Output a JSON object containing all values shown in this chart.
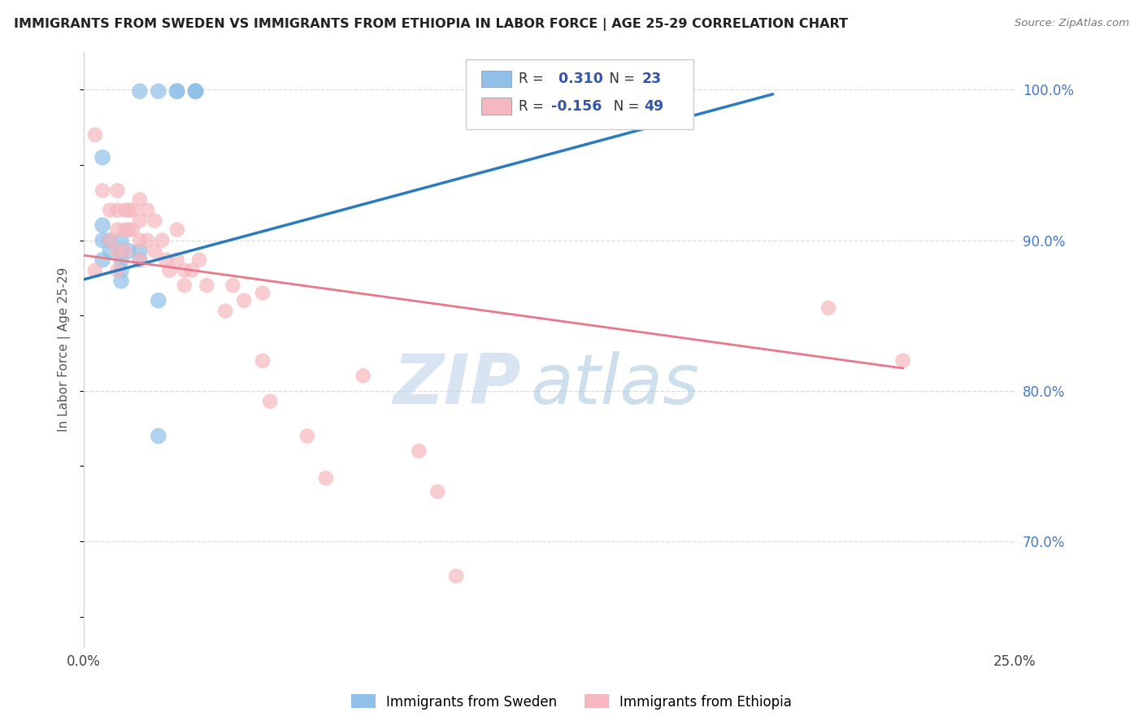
{
  "title": "IMMIGRANTS FROM SWEDEN VS IMMIGRANTS FROM ETHIOPIA IN LABOR FORCE | AGE 25-29 CORRELATION CHART",
  "source": "Source: ZipAtlas.com",
  "ylabel": "In Labor Force | Age 25-29",
  "xlim": [
    0.0,
    0.25
  ],
  "ylim": [
    0.63,
    1.025
  ],
  "xticks": [
    0.0,
    0.05,
    0.1,
    0.15,
    0.2,
    0.25
  ],
  "xtick_labels": [
    "0.0%",
    "",
    "",
    "",
    "",
    "25.0%"
  ],
  "yticks_right": [
    1.0,
    0.9,
    0.8,
    0.7
  ],
  "ytick_labels_right": [
    "100.0%",
    "90.0%",
    "80.0%",
    "70.0%"
  ],
  "sweden_color": "#90c0e8",
  "ethiopia_color": "#f5b8c0",
  "sweden_line_color": "#2b7bbf",
  "ethiopia_line_color": "#e8788a",
  "sweden_R": 0.31,
  "sweden_N": 23,
  "ethiopia_R": -0.156,
  "ethiopia_N": 49,
  "sweden_scatter_x": [
    0.015,
    0.02,
    0.025,
    0.025,
    0.03,
    0.03,
    0.03,
    0.005,
    0.005,
    0.005,
    0.005,
    0.007,
    0.007,
    0.01,
    0.01,
    0.01,
    0.01,
    0.01,
    0.012,
    0.015,
    0.015,
    0.02,
    0.02
  ],
  "sweden_scatter_y": [
    0.999,
    0.999,
    0.999,
    0.999,
    0.999,
    0.999,
    0.999,
    0.955,
    0.91,
    0.9,
    0.887,
    0.9,
    0.893,
    0.9,
    0.893,
    0.887,
    0.88,
    0.873,
    0.893,
    0.893,
    0.887,
    0.86,
    0.77
  ],
  "ethiopia_scatter_x": [
    0.003,
    0.003,
    0.005,
    0.007,
    0.007,
    0.009,
    0.009,
    0.009,
    0.009,
    0.009,
    0.011,
    0.011,
    0.011,
    0.012,
    0.012,
    0.013,
    0.013,
    0.015,
    0.015,
    0.015,
    0.015,
    0.017,
    0.017,
    0.019,
    0.019,
    0.021,
    0.022,
    0.023,
    0.025,
    0.025,
    0.027,
    0.027,
    0.029,
    0.031,
    0.033,
    0.038,
    0.04,
    0.043,
    0.048,
    0.048,
    0.05,
    0.06,
    0.065,
    0.075,
    0.09,
    0.095,
    0.1,
    0.2,
    0.22
  ],
  "ethiopia_scatter_y": [
    0.97,
    0.88,
    0.933,
    0.92,
    0.9,
    0.933,
    0.92,
    0.907,
    0.893,
    0.88,
    0.92,
    0.907,
    0.893,
    0.92,
    0.907,
    0.92,
    0.907,
    0.927,
    0.913,
    0.9,
    0.887,
    0.92,
    0.9,
    0.913,
    0.893,
    0.9,
    0.887,
    0.88,
    0.907,
    0.887,
    0.88,
    0.87,
    0.88,
    0.887,
    0.87,
    0.853,
    0.87,
    0.86,
    0.865,
    0.82,
    0.793,
    0.77,
    0.742,
    0.81,
    0.76,
    0.733,
    0.677,
    0.855,
    0.82
  ],
  "sweden_line_x": [
    0.0,
    0.185
  ],
  "sweden_line_y": [
    0.874,
    0.997
  ],
  "ethiopia_line_x": [
    0.0,
    0.22
  ],
  "ethiopia_line_y": [
    0.89,
    0.815
  ],
  "watermark_zip": "ZIP",
  "watermark_atlas": "atlas",
  "grid_color": "#dddddd",
  "background_color": "#ffffff",
  "dot_size_sweden": 200,
  "dot_size_ethiopia": 180,
  "legend_color_R": "#3355aa",
  "legend_color_N": "#3355aa"
}
